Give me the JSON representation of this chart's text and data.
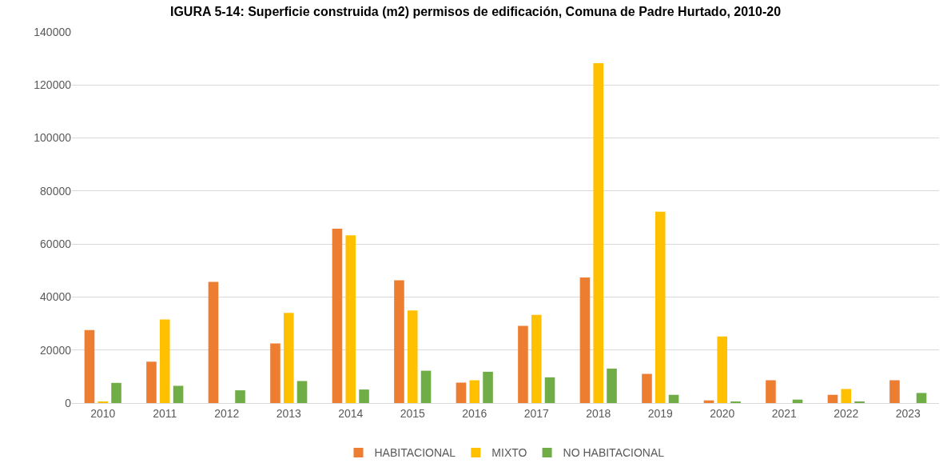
{
  "chart_data": {
    "type": "bar",
    "title": "IGURA 5-14: Superficie construida (m2) permisos de edificación, Comuna de Padre Hurtado, 2010-20",
    "categories": [
      "2010",
      "2011",
      "2012",
      "2013",
      "2014",
      "2015",
      "2016",
      "2017",
      "2018",
      "2019",
      "2020",
      "2021",
      "2022",
      "2023"
    ],
    "series": [
      {
        "name": "HABITACIONAL",
        "color": "#ed7d31",
        "values": [
          27500,
          15600,
          45700,
          22500,
          65800,
          46300,
          7700,
          29100,
          47400,
          11000,
          1000,
          8600,
          3100,
          8600
        ]
      },
      {
        "name": "MIXTO",
        "color": "#ffc000",
        "values": [
          500,
          31500,
          0,
          34000,
          63300,
          34900,
          8600,
          33300,
          128200,
          72200,
          25100,
          0,
          5300,
          0
        ]
      },
      {
        "name": "NO HABITACIONAL",
        "color": "#70ad47",
        "values": [
          7600,
          6500,
          4800,
          8300,
          5100,
          12200,
          11800,
          9700,
          13000,
          3100,
          400,
          1300,
          400,
          3800
        ]
      }
    ],
    "ylim": [
      0,
      140000
    ],
    "yticks": [
      0,
      20000,
      40000,
      60000,
      80000,
      100000,
      120000,
      140000
    ],
    "grid": "y",
    "legend": "bottom"
  }
}
